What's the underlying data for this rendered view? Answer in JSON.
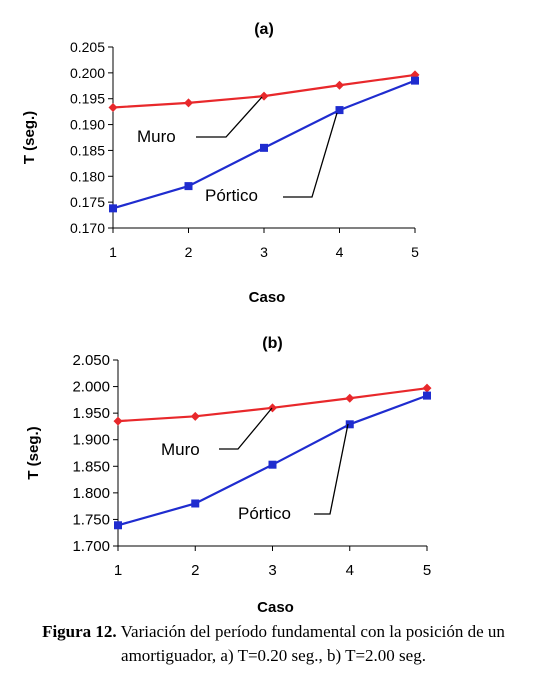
{
  "chart_data": [
    {
      "type": "line",
      "title": "(a)",
      "xlabel": "Caso",
      "ylabel": "T (seg.)",
      "x": [
        1,
        2,
        3,
        4,
        5
      ],
      "xticks": [
        "1",
        "2",
        "3",
        "4",
        "5"
      ],
      "ylim": [
        0.17,
        0.205
      ],
      "yticks": [
        "0.205",
        "0.200",
        "0.195",
        "0.190",
        "0.185",
        "0.180",
        "0.175",
        "0.170"
      ],
      "grid": false,
      "series": [
        {
          "name": "Muro",
          "color": "#e8282b",
          "marker": "diamond",
          "values": [
            0.1933,
            0.1942,
            0.1955,
            0.1976,
            0.1996
          ]
        },
        {
          "name": "Pórtico",
          "color": "#1f2ccf",
          "marker": "square",
          "values": [
            0.1738,
            0.1781,
            0.1855,
            0.1928,
            0.1985
          ]
        }
      ]
    },
    {
      "type": "line",
      "title": "(b)",
      "xlabel": "Caso",
      "ylabel": "T (seg.)",
      "x": [
        1,
        2,
        3,
        4,
        5
      ],
      "xticks": [
        "1",
        "2",
        "3",
        "4",
        "5"
      ],
      "ylim": [
        1.7,
        2.05
      ],
      "yticks": [
        "2.050",
        "2.000",
        "1.950",
        "1.900",
        "1.850",
        "1.800",
        "1.750",
        "1.700"
      ],
      "grid": false,
      "series": [
        {
          "name": "Muro",
          "color": "#e8282b",
          "marker": "diamond",
          "values": [
            1.935,
            1.944,
            1.96,
            1.978,
            1.997
          ]
        },
        {
          "name": "Pórtico",
          "color": "#1f2ccf",
          "marker": "square",
          "values": [
            1.739,
            1.78,
            1.853,
            1.929,
            1.983
          ]
        }
      ]
    }
  ],
  "caption": {
    "label": "Figura 12.",
    "text_line1": " Variación del período fundamental con la posición de un",
    "text_line2": "amortiguador, a) T=0.20 seg., b) T=2.00 seg."
  }
}
